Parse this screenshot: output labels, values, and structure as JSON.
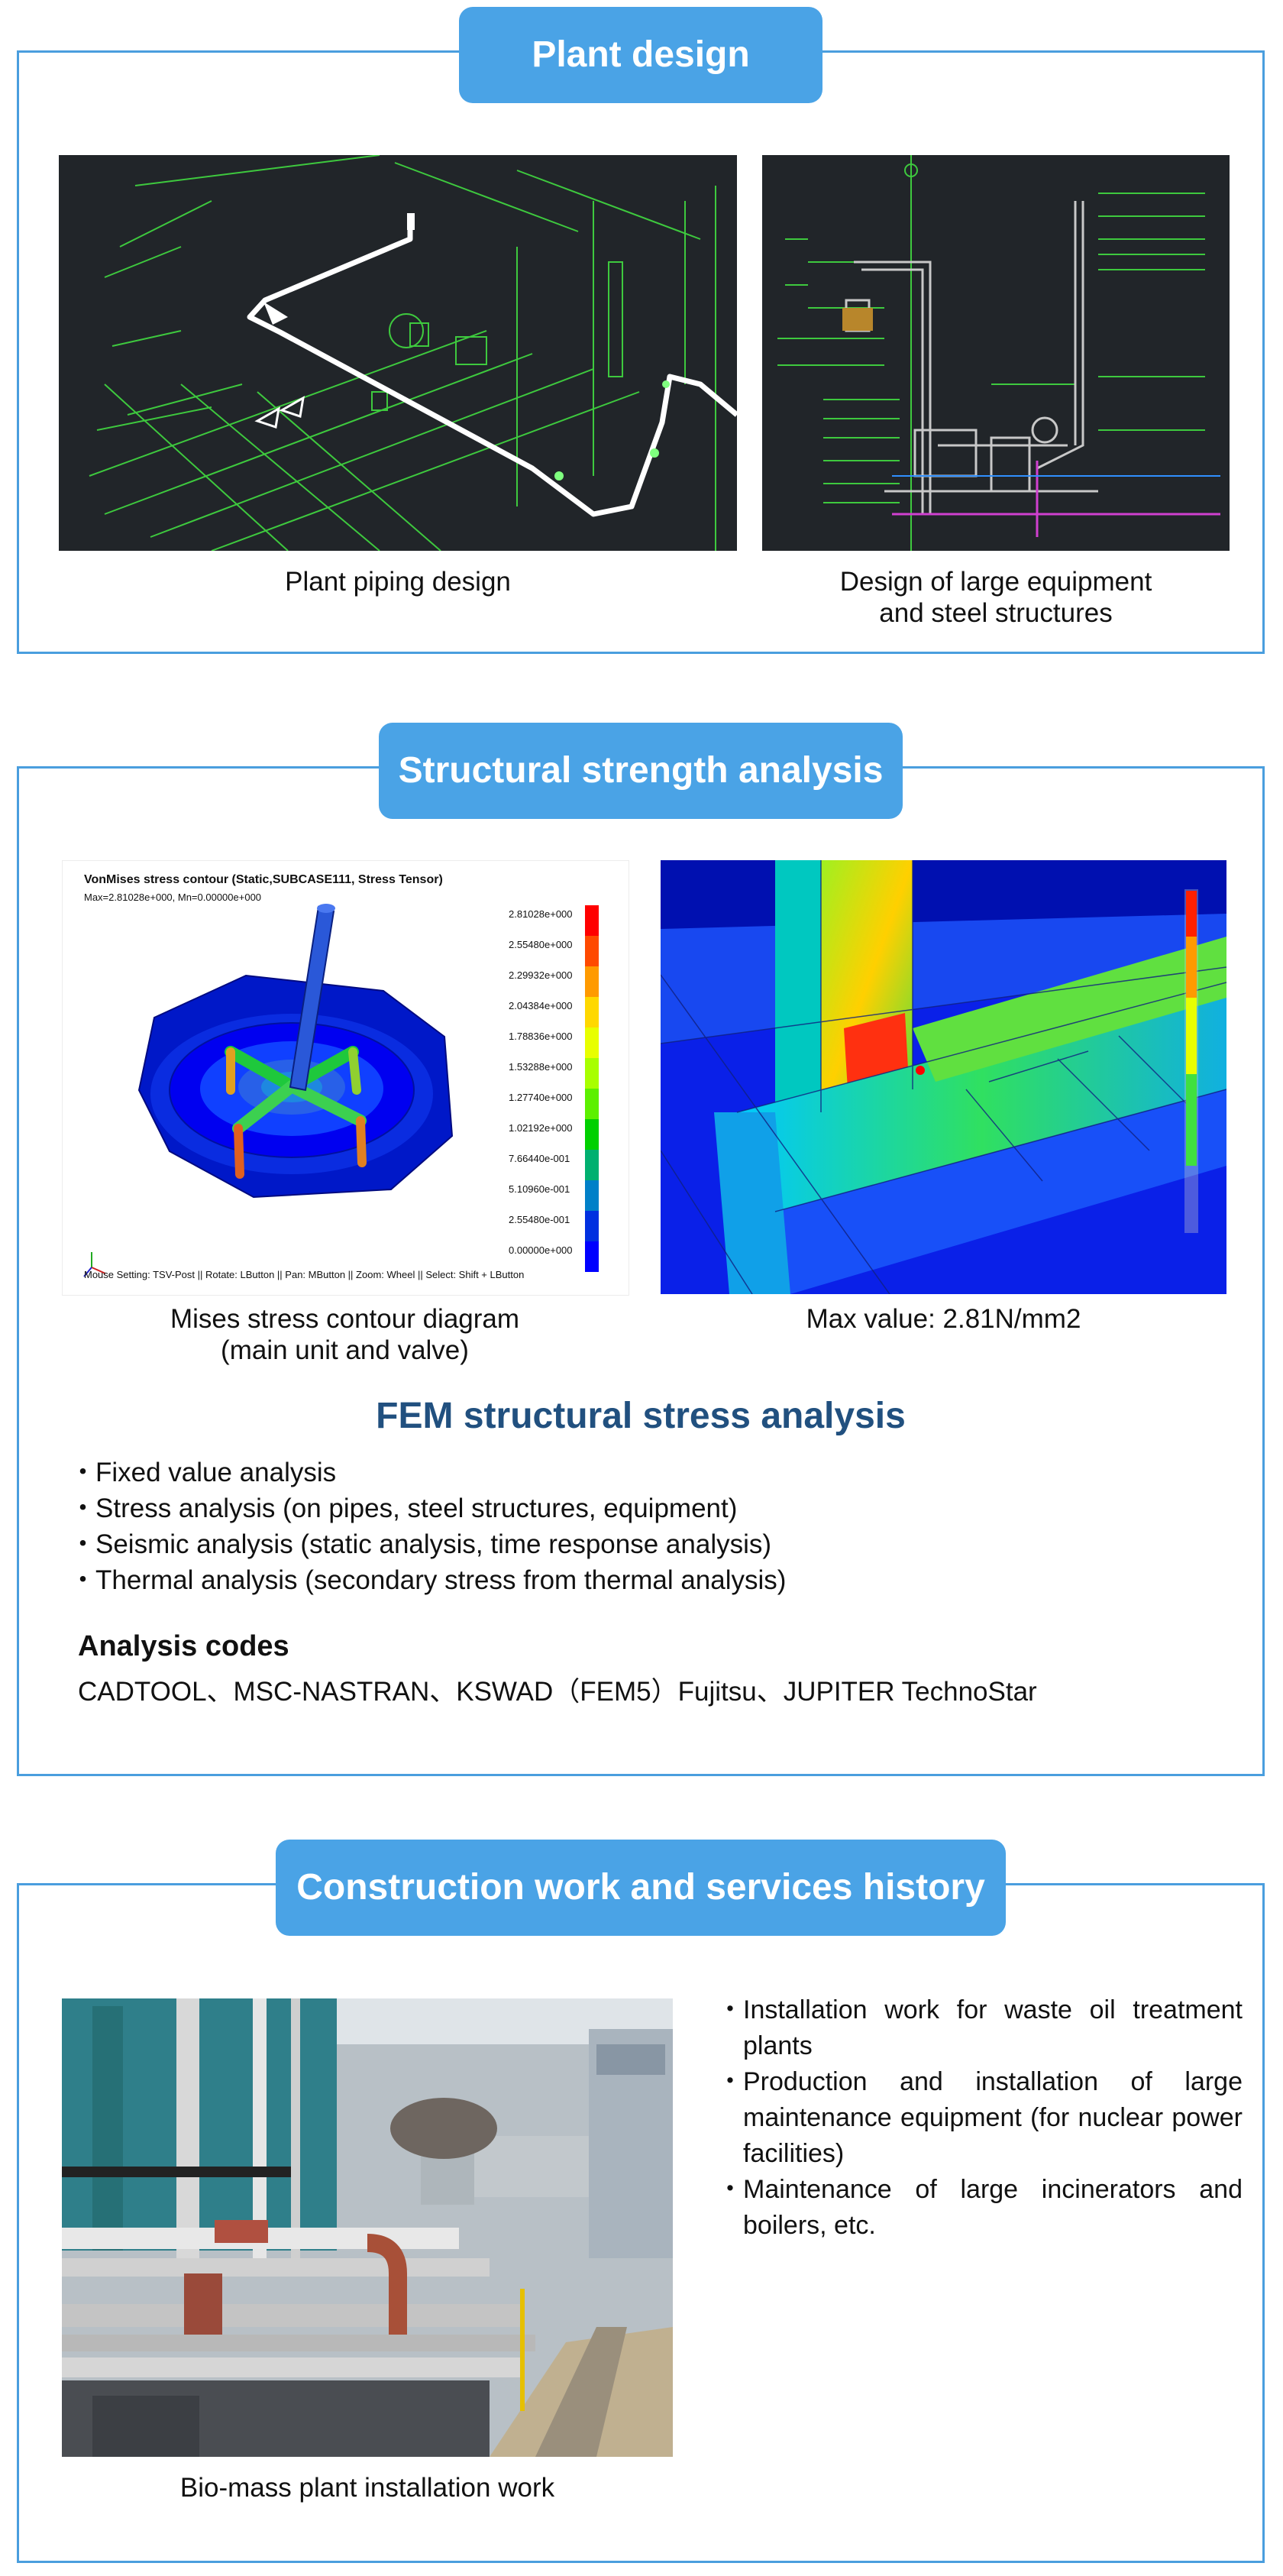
{
  "plant_design": {
    "title": "Plant design",
    "left_caption": "Plant piping design",
    "right_caption_line1": "Design of large equipment",
    "right_caption_line2": "and steel structures"
  },
  "structural": {
    "title": "Structural strength analysis",
    "left_caption_line1": "Mises stress contour diagram",
    "left_caption_line2": "(main unit and valve)",
    "right_caption": "Max value: 2.81N/mm2",
    "contour": {
      "header": "VonMises stress contour (Static,SUBCASE111, Stress Tensor)",
      "subheader": "Max=2.81028e+000, Mn=0.00000e+000",
      "footer": "Mouse Setting: TSV-Post || Rotate: LButton || Pan: MButton || Zoom: Wheel || Select: Shift + LButton",
      "legend_values": [
        "2.81028e+000",
        "2.55480e+000",
        "2.29932e+000",
        "2.04384e+000",
        "1.78836e+000",
        "1.53288e+000",
        "1.27740e+000",
        "1.02192e+000",
        "7.66440e-001",
        "5.10960e-001",
        "2.55480e-001",
        "0.00000e+000"
      ],
      "legend_colors": [
        "#ff0000",
        "#ff4a00",
        "#ff9a00",
        "#ffd800",
        "#e8ff00",
        "#a8ff00",
        "#5cf000",
        "#00d000",
        "#00b070",
        "#0080c8",
        "#0030e0",
        "#0000ff"
      ]
    },
    "fem_title": "FEM structural stress analysis",
    "bullets": [
      "Fixed value analysis",
      "Stress analysis (on pipes, steel structures, equipment)",
      "Seismic analysis (static analysis, time response analysis)",
      "Thermal analysis (secondary stress from thermal analysis)"
    ],
    "codes_heading": "Analysis codes",
    "codes_text": "CADTOOL、MSC-NASTRAN、KSWAD（FEM5）Fujitsu、JUPITER TechnoStar"
  },
  "construction": {
    "title": "Construction work and services history",
    "photo_caption": "Bio-mass plant installation work",
    "items": [
      "Installation work for waste oil treatment plants",
      "Production and installation of large maintenance equipment (for nuclear power facilities)",
      "Maintenance of large incinerators and boilers, etc."
    ]
  },
  "colors": {
    "accent": "#4aa3e6",
    "border": "#4a9ede",
    "fem_title": "#21507f",
    "cad_background": "#212529",
    "cad_green": "#3ec93e"
  }
}
